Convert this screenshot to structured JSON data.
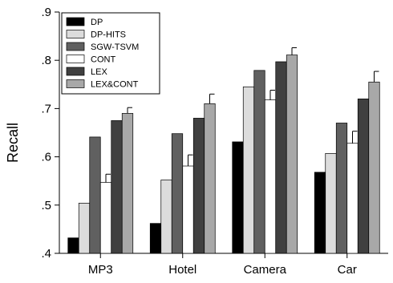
{
  "chart_data": {
    "type": "bar",
    "title": "",
    "xlabel": "",
    "ylabel": "Recall",
    "ylim": [
      0.4,
      0.9
    ],
    "yticks": [
      {
        "value": 0.4,
        "label": ".4"
      },
      {
        "value": 0.5,
        "label": ".5"
      },
      {
        "value": 0.6,
        "label": ".6"
      },
      {
        "value": 0.7,
        "label": ".7"
      },
      {
        "value": 0.8,
        "label": ".8"
      },
      {
        "value": 0.9,
        "label": ".9"
      }
    ],
    "categories": [
      "MP3",
      "Hotel",
      "Camera",
      "Car"
    ],
    "grid": false,
    "legend_position": "top-left",
    "series": [
      {
        "name": "DP",
        "color": "#000000",
        "values": [
          0.432,
          0.462,
          0.631,
          0.568
        ],
        "errors": [
          null,
          null,
          null,
          null
        ]
      },
      {
        "name": "DP-HITS",
        "color": "#dcdcdc",
        "values": [
          0.504,
          0.552,
          0.745,
          0.607
        ],
        "errors": [
          null,
          null,
          null,
          null
        ]
      },
      {
        "name": "SGW-TSVM",
        "color": "#606060",
        "values": [
          0.641,
          0.648,
          0.779,
          0.67
        ],
        "errors": [
          null,
          null,
          null,
          null
        ]
      },
      {
        "name": "CONT",
        "color": "#ffffff",
        "values": [
          0.547,
          0.581,
          0.718,
          0.628
        ],
        "errors": [
          0.017,
          0.023,
          0.02,
          0.025
        ]
      },
      {
        "name": "LEX",
        "color": "#404040",
        "values": [
          0.675,
          0.68,
          0.797,
          0.72
        ],
        "errors": [
          null,
          null,
          null,
          null
        ]
      },
      {
        "name": "LEX&CONT",
        "color": "#a8a8a8",
        "values": [
          0.69,
          0.71,
          0.811,
          0.755
        ],
        "errors": [
          0.012,
          0.02,
          0.015,
          0.022
        ]
      }
    ]
  }
}
